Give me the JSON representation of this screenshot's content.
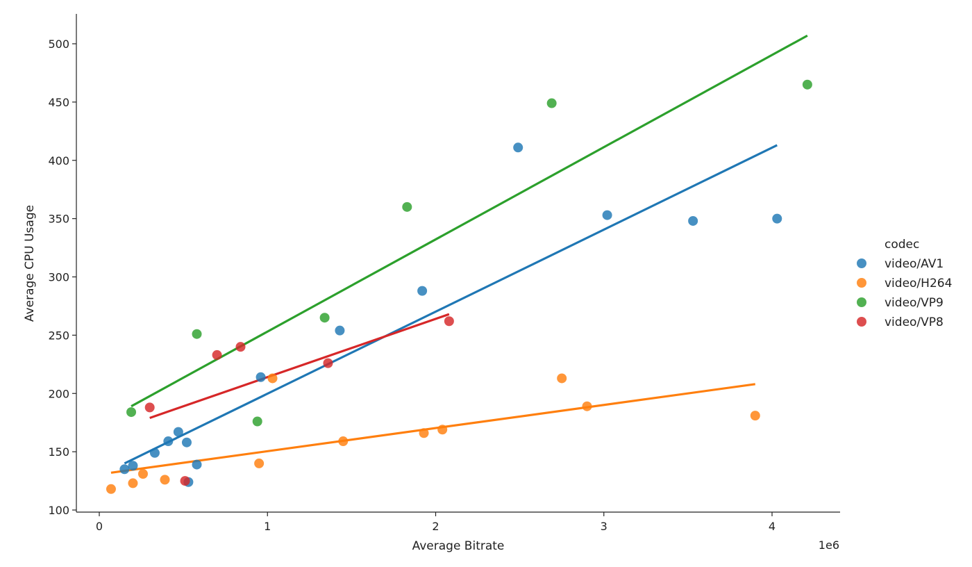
{
  "chart_data": {
    "type": "scatter",
    "xlabel": "Average Bitrate",
    "ylabel": "Average CPU Usage",
    "x_offset_label": "1e6",
    "x_scale": 1000000,
    "xlim": [
      -150000,
      4400000
    ],
    "ylim": [
      100,
      525
    ],
    "x_ticks": [
      0,
      1000000,
      2000000,
      3000000,
      4000000
    ],
    "x_tick_labels": [
      "0",
      "1",
      "2",
      "3",
      "4"
    ],
    "y_ticks": [
      100,
      150,
      200,
      250,
      300,
      350,
      400,
      450,
      500
    ],
    "y_tick_labels": [
      "100",
      "150",
      "200",
      "250",
      "300",
      "350",
      "400",
      "450",
      "500"
    ],
    "grid": false,
    "legend": {
      "title": "codec",
      "placement": "right"
    },
    "series": [
      {
        "name": "video/AV1",
        "color": "#1f77b4",
        "points": [
          [
            150000,
            135
          ],
          [
            200000,
            138
          ],
          [
            330000,
            149
          ],
          [
            410000,
            159
          ],
          [
            470000,
            167
          ],
          [
            520000,
            158
          ],
          [
            530000,
            124
          ],
          [
            580000,
            139
          ],
          [
            960000,
            214
          ],
          [
            1430000,
            254
          ],
          [
            1920000,
            288
          ],
          [
            2490000,
            411
          ],
          [
            3020000,
            353
          ],
          [
            3530000,
            348
          ],
          [
            4030000,
            350
          ]
        ],
        "fit": [
          [
            150000,
            140
          ],
          [
            4030000,
            413
          ]
        ]
      },
      {
        "name": "video/H264",
        "color": "#ff7f0e",
        "points": [
          [
            70000,
            118
          ],
          [
            200000,
            123
          ],
          [
            260000,
            131
          ],
          [
            390000,
            126
          ],
          [
            950000,
            140
          ],
          [
            1030000,
            213
          ],
          [
            1450000,
            159
          ],
          [
            1930000,
            166
          ],
          [
            2040000,
            169
          ],
          [
            2750000,
            213
          ],
          [
            2900000,
            189
          ],
          [
            3900000,
            181
          ]
        ],
        "fit": [
          [
            70000,
            132
          ],
          [
            3900000,
            208
          ]
        ]
      },
      {
        "name": "video/VP9",
        "color": "#2ca02c",
        "points": [
          [
            190000,
            184
          ],
          [
            580000,
            251
          ],
          [
            940000,
            176
          ],
          [
            1340000,
            265
          ],
          [
            1830000,
            360
          ],
          [
            2690000,
            449
          ],
          [
            4210000,
            465
          ]
        ],
        "fit": [
          [
            190000,
            189
          ],
          [
            4210000,
            507
          ]
        ]
      },
      {
        "name": "video/VP8",
        "color": "#d62728",
        "points": [
          [
            300000,
            188
          ],
          [
            510000,
            125
          ],
          [
            700000,
            233
          ],
          [
            840000,
            240
          ],
          [
            1360000,
            226
          ],
          [
            2080000,
            262
          ]
        ],
        "fit": [
          [
            300000,
            179
          ],
          [
            2080000,
            268
          ]
        ]
      }
    ]
  }
}
